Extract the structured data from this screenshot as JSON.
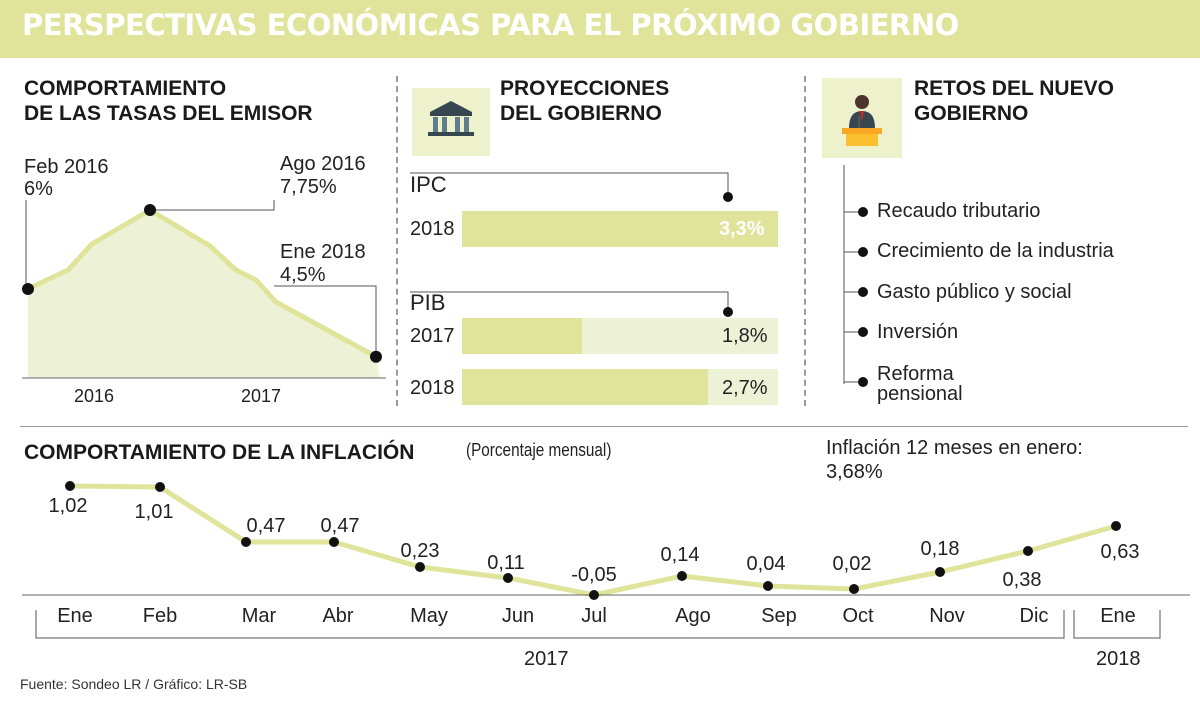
{
  "header": {
    "title": "PERSPECTIVAS ECONÓMICAS PARA EL PRÓXIMO GOBIERNO"
  },
  "tasas": {
    "title_1": "COMPORTAMIENTO",
    "title_2": "DE LAS TASAS DEL EMISOR",
    "annotations": [
      {
        "label": "Feb 2016",
        "value": "6%"
      },
      {
        "label": "Ago 2016",
        "value": "7,75%"
      },
      {
        "label": "Ene 2018",
        "value": "4,5%"
      }
    ],
    "years": [
      "2016",
      "2017"
    ]
  },
  "proyecciones": {
    "title_1": "PROYECCIONES",
    "title_2": "DEL GOBIERNO",
    "ipc": {
      "label": "IPC",
      "rows": [
        {
          "year": "2018",
          "value": "3,3%",
          "num": 3.3
        }
      ]
    },
    "pib": {
      "label": "PIB",
      "rows": [
        {
          "year": "2017",
          "value": "1,8%",
          "num": 1.8
        },
        {
          "year": "2018",
          "value": "2,7%",
          "num": 2.7
        }
      ]
    }
  },
  "retos": {
    "title_1": "RETOS DEL NUEVO",
    "title_2": "GOBIERNO",
    "items": [
      "Recaudo tributario",
      "Crecimiento de la industria",
      "Gasto público y social",
      "Inversión",
      "Reforma",
      "pensional"
    ]
  },
  "inflacion": {
    "title": "COMPORTAMIENTO DE LA INFLACIÓN",
    "subtitle": "(Porcentaje mensual)",
    "note_label": "Inflación 12 meses en enero:",
    "note_value": "3,68%",
    "year_labels": [
      "2017",
      "2018"
    ]
  },
  "source": "Fuente: Sondeo LR / Gráfico: LR-SB",
  "colors": {
    "accent": "#dfe49a",
    "light": "#edf1d6",
    "dot": "#111111"
  },
  "chart_data": [
    {
      "type": "area",
      "title": "COMPORTAMIENTO DE LAS TASAS DEL EMISOR",
      "x": [
        "Feb 2016",
        "Ago 2016",
        "Ene 2018"
      ],
      "values": [
        6,
        7.75,
        4.5
      ],
      "annotations": [
        "6%",
        "7,75%",
        "4,5%"
      ],
      "categories": [
        "2016",
        "2017"
      ]
    },
    {
      "type": "bar",
      "title": "PROYECCIONES DEL GOBIERNO",
      "series": [
        {
          "name": "IPC",
          "categories": [
            "2018"
          ],
          "values": [
            3.3
          ]
        },
        {
          "name": "PIB",
          "categories": [
            "2017",
            "2018"
          ],
          "values": [
            1.8,
            2.7
          ]
        }
      ]
    },
    {
      "type": "line",
      "title": "COMPORTAMIENTO DE LA INFLACIÓN",
      "subtitle": "(Porcentaje mensual)",
      "categories": [
        "Ene",
        "Feb",
        "Mar",
        "Abr",
        "May",
        "Jun",
        "Jul",
        "Ago",
        "Sep",
        "Oct",
        "Nov",
        "Dic",
        "Ene"
      ],
      "values": [
        1.02,
        1.01,
        0.47,
        0.47,
        0.23,
        0.11,
        -0.05,
        0.14,
        0.04,
        0.02,
        0.18,
        0.38,
        0.63
      ],
      "value_labels": [
        "1,02",
        "1,01",
        "0,47",
        "0,47",
        "0,23",
        "0,11",
        "-0,05",
        "0,14",
        "0,04",
        "0,02",
        "0,18",
        "0,38",
        "0,63"
      ],
      "ylim": [
        -0.1,
        1.1
      ],
      "grid": false
    }
  ]
}
